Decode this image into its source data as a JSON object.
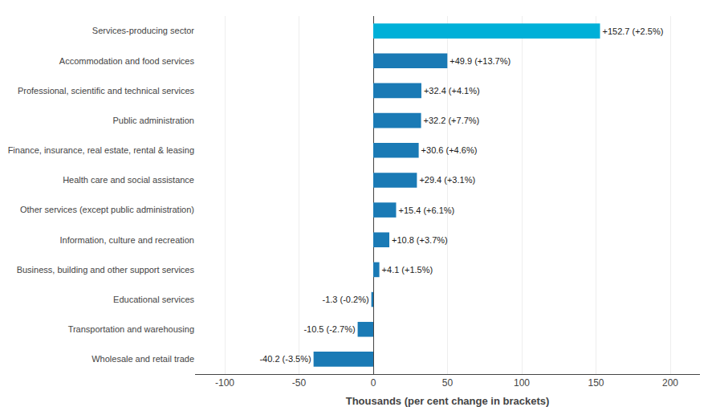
{
  "chart_data": {
    "type": "bar",
    "orientation": "horizontal",
    "categories": [
      "Services-producing sector",
      "Accommodation and food services",
      "Professional, scientific and technical services",
      "Public administration",
      "Finance, insurance, real estate, rental & leasing",
      "Health care and social assistance",
      "Other services (except public administration)",
      "Information, culture and recreation",
      "Business, building and other support services",
      "Educational services",
      "Transportation and warehousing",
      "Wholesale and retail trade"
    ],
    "values": [
      152.7,
      49.9,
      32.4,
      32.2,
      30.6,
      29.4,
      15.4,
      10.8,
      4.1,
      -1.3,
      -10.5,
      -40.2
    ],
    "value_labels": [
      "+152.7 (+2.5%)",
      "+49.9 (+13.7%)",
      "+32.4 (+4.1%)",
      "+32.2 (+7.7%)",
      "+30.6 (+4.6%)",
      "+29.4 (+3.1%)",
      "+15.4 (+6.1%)",
      "+10.8 (+3.7%)",
      "+4.1 (+1.5%)",
      "-1.3 (-0.2%)",
      "-10.5 (-2.7%)",
      "-40.2 (-3.5%)"
    ],
    "data_labels": true,
    "colors": [
      "#00b0d8",
      "#1a7ab5",
      "#1a7ab5",
      "#1a7ab5",
      "#1a7ab5",
      "#1a7ab5",
      "#1a7ab5",
      "#1a7ab5",
      "#1a7ab5",
      "#1a7ab5",
      "#1a7ab5",
      "#1a7ab5"
    ],
    "xlabel": "Thousands (per cent change in brackets)",
    "xlim": [
      -120,
      220
    ],
    "xticks": [
      -100,
      -50,
      0,
      50,
      100,
      150,
      200
    ],
    "grid": true
  }
}
